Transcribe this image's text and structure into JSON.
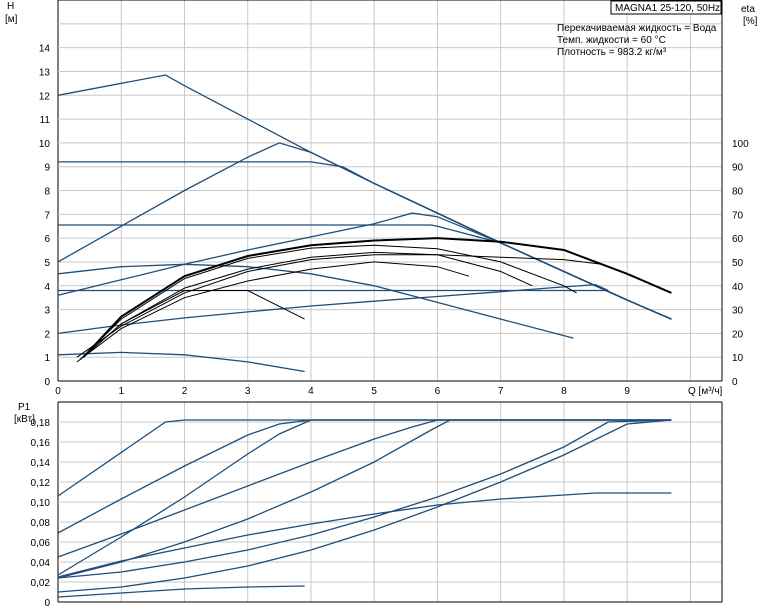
{
  "chart_data": [
    {
      "type": "line",
      "title": "MAGNA1 25-120, 50Hz",
      "conditions": [
        "Перекачиваемая жидкость = Вода",
        "Темп. жидкости = 60 °C",
        "Плотность = 983.2 кг/м³"
      ],
      "xlabel": "Q [м³/ч]",
      "ylabel": "H",
      "ylabel_unit": "[м]",
      "y2label": "eta",
      "y2label_unit": "[%]",
      "xlim": [
        0,
        10.5
      ],
      "ylim": [
        0,
        16
      ],
      "y2lim": [
        0,
        160
      ],
      "x_ticks": [
        "0",
        "1",
        "2",
        "3",
        "4",
        "5",
        "6",
        "7",
        "8",
        "9"
      ],
      "y_ticks": [
        "0",
        "1",
        "2",
        "3",
        "4",
        "5",
        "6",
        "7",
        "8",
        "9",
        "10",
        "11",
        "12",
        "13",
        "14"
      ],
      "y2_ticks": [
        "0",
        "10",
        "20",
        "30",
        "40",
        "50",
        "60",
        "70",
        "80",
        "90",
        "100"
      ],
      "grid": true,
      "series_head": [
        {
          "x": [
            0,
            1.7,
            2,
            3,
            4,
            5,
            6,
            7,
            8,
            9,
            9.7
          ],
          "y": [
            12,
            12.85,
            12.4,
            11,
            9.6,
            8.3,
            7.05,
            5.8,
            4.6,
            3.4,
            2.6
          ]
        },
        {
          "x": [
            0,
            1,
            2,
            3,
            3.5,
            4,
            5,
            6,
            7,
            8,
            9,
            9.7
          ],
          "y": [
            5,
            6.5,
            8,
            9.4,
            10,
            9.6,
            8.3,
            7.05,
            5.8,
            4.6,
            3.4,
            2.6
          ]
        },
        {
          "x": [
            0,
            4,
            4.5,
            5,
            6,
            7,
            8,
            9,
            9.7
          ],
          "y": [
            9.2,
            9.2,
            9,
            8.3,
            7.05,
            5.8,
            4.6,
            3.4,
            2.6
          ]
        },
        {
          "x": [
            0,
            1,
            2,
            3,
            4,
            5,
            5.6,
            6,
            7,
            8,
            9,
            9.7
          ],
          "y": [
            3.6,
            4.25,
            4.9,
            5.5,
            6.05,
            6.6,
            7.05,
            6.9,
            5.8,
            4.6,
            3.4,
            2.6
          ]
        },
        {
          "x": [
            0,
            5.9,
            6,
            7,
            8,
            9,
            9.7
          ],
          "y": [
            6.55,
            6.55,
            6.5,
            5.8,
            4.6,
            3.4,
            2.6
          ]
        },
        {
          "x": [
            0,
            1,
            2,
            3,
            4,
            5,
            6,
            7,
            8,
            8.5,
            8.7
          ],
          "y": [
            2,
            2.35,
            2.65,
            2.9,
            3.15,
            3.35,
            3.55,
            3.75,
            3.95,
            4.05,
            3.8
          ]
        },
        {
          "x": [
            0,
            8.7
          ],
          "y": [
            3.8,
            3.8
          ]
        },
        {
          "x": [
            0,
            1,
            2,
            3,
            4,
            5,
            6,
            7,
            8.15
          ],
          "y": [
            4.5,
            4.8,
            4.9,
            4.8,
            4.5,
            4,
            3.3,
            2.6,
            1.8
          ]
        },
        {
          "x": [
            0,
            1,
            2,
            3,
            3.9
          ],
          "y": [
            1.1,
            1.2,
            1.1,
            0.8,
            0.4
          ]
        }
      ],
      "series_eta": [
        {
          "x": [
            0.4,
            1,
            2,
            3,
            4,
            5,
            6,
            7,
            8,
            9,
            9.7
          ],
          "y": [
            10,
            27,
            44,
            52.5,
            57,
            59,
            60,
            58.5,
            55,
            45,
            37
          ],
          "bold": true
        },
        {
          "x": [
            0.35,
            1,
            2,
            3,
            4,
            5,
            6,
            7,
            8,
            8.2
          ],
          "y": [
            9,
            26,
            43,
            51.5,
            55.8,
            57,
            55.5,
            50,
            40,
            37
          ]
        },
        {
          "x": [
            0.35,
            1,
            2,
            3,
            4,
            5,
            6,
            7,
            7.5
          ],
          "y": [
            9,
            24,
            39,
            47,
            52,
            54,
            53,
            46,
            40
          ]
        },
        {
          "x": [
            0.3,
            1,
            2,
            3,
            4,
            5,
            6,
            6.5
          ],
          "y": [
            8,
            22,
            35,
            42,
            47,
            50,
            48,
            44
          ]
        },
        {
          "x": [
            0.3,
            1,
            2,
            3,
            4,
            5,
            6,
            7,
            8,
            8.6
          ],
          "y": [
            10,
            23,
            37,
            46,
            51,
            53,
            53,
            52,
            51,
            49
          ]
        },
        {
          "x": [
            0.4,
            1,
            2,
            3,
            3.9
          ],
          "y": [
            10,
            24,
            38,
            38,
            26
          ]
        }
      ]
    },
    {
      "type": "line",
      "ylabel": "P1",
      "ylabel_unit": "[кВт]",
      "xlim": [
        0,
        10.5
      ],
      "ylim": [
        0,
        0.2
      ],
      "y_ticks": [
        "0",
        "0,02",
        "0,04",
        "0,06",
        "0,08",
        "0,10",
        "0,12",
        "0,14",
        "0,16",
        "0,18"
      ],
      "grid": true,
      "series": [
        {
          "x": [
            0,
            1.7,
            2,
            9.7
          ],
          "y": [
            0.106,
            0.18,
            0.182,
            0.182
          ]
        },
        {
          "x": [
            0,
            1,
            2,
            3,
            3.5,
            4,
            9.7
          ],
          "y": [
            0.069,
            0.103,
            0.136,
            0.167,
            0.178,
            0.182,
            0.182
          ]
        },
        {
          "x": [
            0,
            1,
            2,
            3,
            3.5,
            4,
            9.7
          ],
          "y": [
            0.027,
            0.065,
            0.105,
            0.148,
            0.168,
            0.182,
            0.182
          ]
        },
        {
          "x": [
            0,
            1,
            2,
            3,
            4,
            5,
            5.6,
            6,
            9.7
          ],
          "y": [
            0.045,
            0.068,
            0.092,
            0.116,
            0.14,
            0.163,
            0.175,
            0.182,
            0.182
          ]
        },
        {
          "x": [
            0,
            1,
            2,
            3,
            4,
            5,
            5.9,
            6.2,
            9.7
          ],
          "y": [
            0.024,
            0.04,
            0.06,
            0.083,
            0.11,
            0.14,
            0.172,
            0.182,
            0.182
          ]
        },
        {
          "x": [
            0,
            1,
            2,
            3,
            4,
            5,
            6,
            7,
            8,
            8.5,
            9.7
          ],
          "y": [
            0.025,
            0.041,
            0.054,
            0.067,
            0.078,
            0.088,
            0.097,
            0.103,
            0.107,
            0.109,
            0.109
          ]
        },
        {
          "x": [
            0,
            1,
            2,
            3,
            4,
            5,
            6,
            7,
            8,
            8.7,
            9.7
          ],
          "y": [
            0.024,
            0.03,
            0.04,
            0.052,
            0.067,
            0.085,
            0.105,
            0.128,
            0.155,
            0.18,
            0.182
          ]
        },
        {
          "x": [
            0,
            1,
            2,
            3,
            4,
            5,
            6,
            7,
            8,
            9,
            9.7
          ],
          "y": [
            0.01,
            0.015,
            0.024,
            0.036,
            0.052,
            0.072,
            0.095,
            0.12,
            0.147,
            0.178,
            0.182
          ]
        },
        {
          "x": [
            0,
            1,
            2,
            3,
            3.9
          ],
          "y": [
            0.005,
            0.009,
            0.013,
            0.015,
            0.016
          ]
        }
      ]
    }
  ]
}
